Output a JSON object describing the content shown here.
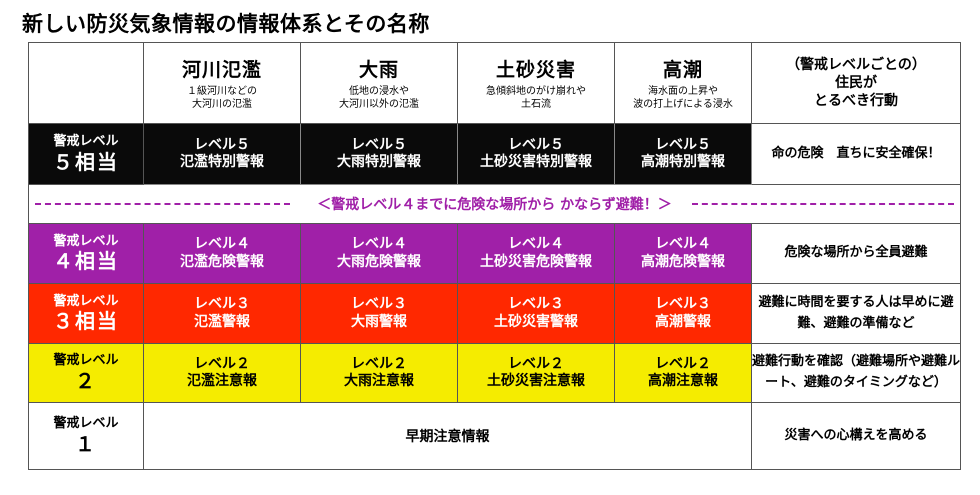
{
  "title": "新しい防災気象情報の情報体系とその名称",
  "header": {
    "hazards": [
      {
        "name": "河川氾濫",
        "desc1": "１級河川などの",
        "desc2": "大河川の氾濫"
      },
      {
        "name": "大雨",
        "desc1": "低地の浸水や",
        "desc2": "大河川以外の氾濫"
      },
      {
        "name": "土砂災害",
        "desc1": "急傾斜地のがけ崩れや",
        "desc2": "土石流"
      },
      {
        "name": "高潮",
        "desc1": "海水面の上昇や",
        "desc2": "波の打上げによる浸水"
      }
    ],
    "action_line1": "（警戒レベルごとの）",
    "action_line2": "住民が",
    "action_line3": "とるべき行動"
  },
  "levels": {
    "l5": {
      "label": "警戒レベル",
      "num": "５相当",
      "cells": [
        {
          "l1": "レベル５",
          "l2": "氾濫特別警報"
        },
        {
          "l1": "レベル５",
          "l2": "大雨特別警報"
        },
        {
          "l1": "レベル５",
          "l2": "土砂災害特別警報"
        },
        {
          "l1": "レベル５",
          "l2": "高潮特別警報"
        }
      ],
      "action": "命の危険　直ちに安全確保！",
      "color": "#0a0a0a"
    },
    "separator": "＜警戒レベル４までに危険な場所から かならず避難！＞",
    "l4": {
      "label": "警戒レベル",
      "num": "４相当",
      "cells": [
        {
          "l1": "レベル４",
          "l2": "氾濫危険警報"
        },
        {
          "l1": "レベル４",
          "l2": "大雨危険警報"
        },
        {
          "l1": "レベル４",
          "l2": "土砂災害危険警報"
        },
        {
          "l1": "レベル４",
          "l2": "高潮危険警報"
        }
      ],
      "action": "危険な場所から全員避難",
      "color": "#a020a8"
    },
    "l3": {
      "label": "警戒レベル",
      "num": "３相当",
      "cells": [
        {
          "l1": "レベル３",
          "l2": "氾濫警報"
        },
        {
          "l1": "レベル３",
          "l2": "大雨警報"
        },
        {
          "l1": "レベル３",
          "l2": "土砂災害警報"
        },
        {
          "l1": "レベル３",
          "l2": "高潮警報"
        }
      ],
      "action": "避難に時間を要する人は早めに避難、避難の準備など",
      "color": "#ff2800"
    },
    "l2": {
      "label": "警戒レベル",
      "num": "２",
      "cells": [
        {
          "l1": "レベル２",
          "l2": "氾濫注意報"
        },
        {
          "l1": "レベル２",
          "l2": "大雨注意報"
        },
        {
          "l1": "レベル２",
          "l2": "土砂災害注意報"
        },
        {
          "l1": "レベル２",
          "l2": "高潮注意報"
        }
      ],
      "action": "避難行動を確認（避難場所や避難ルート、避難のタイミングなど）",
      "color": "#f5ec00"
    },
    "l1": {
      "label": "警戒レベル",
      "num": "１",
      "early": "早期注意情報",
      "action": "災害への心構えを高める"
    }
  }
}
